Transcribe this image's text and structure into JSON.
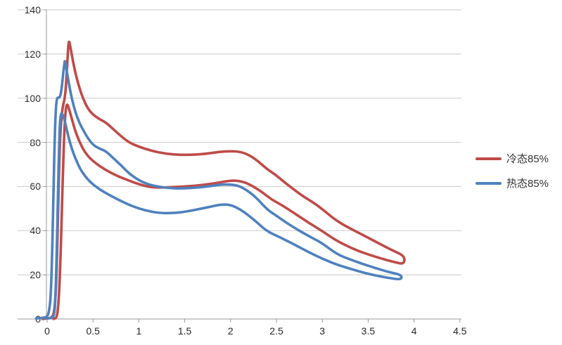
{
  "chart_data": {
    "type": "line",
    "title": "",
    "xlabel": "",
    "ylabel": "",
    "grid": true,
    "legend_position": "right",
    "x_axis": {
      "min": 0,
      "max": 4.5,
      "tick_step": 0.5,
      "tick_labels": [
        "0",
        "0.5",
        "1",
        "1.5",
        "2",
        "2.5",
        "3",
        "3.5",
        "4",
        "4.5"
      ],
      "tick_values": [
        0,
        0.5,
        1,
        1.5,
        2,
        2.5,
        3,
        3.5,
        4,
        4.5
      ]
    },
    "y_axis": {
      "min": 0,
      "max": 140,
      "tick_step": 20,
      "tick_labels": [
        "0",
        "20",
        "40",
        "60",
        "80",
        "100",
        "120",
        "140"
      ],
      "tick_values": [
        0,
        20,
        40,
        60,
        80,
        100,
        120,
        140
      ]
    },
    "series": [
      {
        "name": "冷态85%",
        "color": "#BE4B48",
        "shape": "closed-hysteresis-loop",
        "points": [
          [
            -0.05,
            0
          ],
          [
            0.02,
            0.3
          ],
          [
            0.06,
            1
          ],
          [
            0.08,
            4
          ],
          [
            0.1,
            15
          ],
          [
            0.115,
            40
          ],
          [
            0.13,
            68
          ],
          [
            0.145,
            85
          ],
          [
            0.16,
            93
          ],
          [
            0.175,
            97
          ],
          [
            0.19,
            99.5
          ],
          [
            0.205,
            105
          ],
          [
            0.22,
            116
          ],
          [
            0.235,
            127
          ],
          [
            0.255,
            123
          ],
          [
            0.28,
            117
          ],
          [
            0.31,
            111
          ],
          [
            0.35,
            105
          ],
          [
            0.39,
            100
          ],
          [
            0.44,
            95.5
          ],
          [
            0.5,
            92.5
          ],
          [
            0.57,
            90.5
          ],
          [
            0.64,
            89
          ],
          [
            0.72,
            86
          ],
          [
            0.8,
            83
          ],
          [
            0.89,
            80
          ],
          [
            1.0,
            78
          ],
          [
            1.15,
            76
          ],
          [
            1.3,
            74.8
          ],
          [
            1.45,
            74.3
          ],
          [
            1.6,
            74.4
          ],
          [
            1.75,
            74.9
          ],
          [
            1.88,
            75.7
          ],
          [
            2.0,
            76
          ],
          [
            2.1,
            75.8
          ],
          [
            2.2,
            74.3
          ],
          [
            2.3,
            71.5
          ],
          [
            2.4,
            67.8
          ],
          [
            2.5,
            65
          ],
          [
            2.6,
            61.5
          ],
          [
            2.7,
            58.3
          ],
          [
            2.8,
            55.3
          ],
          [
            2.9,
            52.8
          ],
          [
            3.0,
            49.8
          ],
          [
            3.16,
            44.2
          ],
          [
            3.36,
            39.8
          ],
          [
            3.5,
            36.8
          ],
          [
            3.65,
            33.5
          ],
          [
            3.78,
            30.8
          ],
          [
            3.88,
            28.8
          ],
          [
            3.9,
            26.8
          ],
          [
            3.88,
            24.9
          ],
          [
            3.8,
            25.6
          ],
          [
            3.65,
            27.3
          ],
          [
            3.5,
            29.2
          ],
          [
            3.35,
            31.5
          ],
          [
            3.16,
            35.3
          ],
          [
            3.0,
            39.8
          ],
          [
            2.85,
            43.6
          ],
          [
            2.7,
            47.8
          ],
          [
            2.55,
            51.8
          ],
          [
            2.45,
            54
          ],
          [
            2.35,
            57.3
          ],
          [
            2.25,
            60
          ],
          [
            2.15,
            62
          ],
          [
            2.05,
            62.8
          ],
          [
            1.95,
            62.4
          ],
          [
            1.85,
            61.6
          ],
          [
            1.7,
            60.7
          ],
          [
            1.55,
            60.1
          ],
          [
            1.4,
            59.8
          ],
          [
            1.25,
            59.5
          ],
          [
            1.12,
            59.7
          ],
          [
            1.0,
            61
          ],
          [
            0.89,
            62.7
          ],
          [
            0.78,
            64.5
          ],
          [
            0.68,
            66.5
          ],
          [
            0.58,
            69
          ],
          [
            0.5,
            71.5
          ],
          [
            0.44,
            74
          ],
          [
            0.39,
            77
          ],
          [
            0.34,
            81.5
          ],
          [
            0.3,
            86
          ],
          [
            0.27,
            90.5
          ],
          [
            0.24,
            95
          ],
          [
            0.22,
            97.5
          ],
          [
            0.205,
            96
          ],
          [
            0.19,
            88
          ],
          [
            0.175,
            70
          ],
          [
            0.16,
            48
          ],
          [
            0.145,
            26
          ],
          [
            0.13,
            11
          ],
          [
            0.115,
            3
          ],
          [
            0.1,
            0.5
          ],
          [
            0.07,
            0
          ]
        ]
      },
      {
        "name": "热态85%",
        "color": "#4F81BD",
        "shape": "closed-hysteresis-loop",
        "points": [
          [
            -0.12,
            0.3
          ],
          [
            -0.04,
            0.5
          ],
          [
            0.0,
            1
          ],
          [
            0.02,
            3
          ],
          [
            0.04,
            10
          ],
          [
            0.055,
            30
          ],
          [
            0.07,
            60
          ],
          [
            0.085,
            85
          ],
          [
            0.095,
            95
          ],
          [
            0.105,
            99.5
          ],
          [
            0.115,
            100.3
          ],
          [
            0.13,
            100.2
          ],
          [
            0.145,
            101
          ],
          [
            0.16,
            105
          ],
          [
            0.175,
            111
          ],
          [
            0.19,
            116.5
          ],
          [
            0.195,
            117
          ],
          [
            0.215,
            112
          ],
          [
            0.24,
            106
          ],
          [
            0.27,
            99.5
          ],
          [
            0.31,
            93.5
          ],
          [
            0.35,
            89
          ],
          [
            0.4,
            85
          ],
          [
            0.45,
            81.5
          ],
          [
            0.51,
            78.5
          ],
          [
            0.58,
            77
          ],
          [
            0.64,
            76
          ],
          [
            0.73,
            72.5
          ],
          [
            0.81,
            69.5
          ],
          [
            0.89,
            66
          ],
          [
            1.0,
            62.8
          ],
          [
            1.1,
            61
          ],
          [
            1.2,
            60
          ],
          [
            1.32,
            59.3
          ],
          [
            1.45,
            59.1
          ],
          [
            1.6,
            59.4
          ],
          [
            1.75,
            60
          ],
          [
            1.88,
            60.8
          ],
          [
            1.97,
            61
          ],
          [
            2.08,
            60.5
          ],
          [
            2.18,
            58.3
          ],
          [
            2.28,
            55
          ],
          [
            2.4,
            49.5
          ],
          [
            2.5,
            46.8
          ],
          [
            2.6,
            43.8
          ],
          [
            2.7,
            41.2
          ],
          [
            2.8,
            38.8
          ],
          [
            2.9,
            36.5
          ],
          [
            3.0,
            34.3
          ],
          [
            3.16,
            29.3
          ],
          [
            3.3,
            27
          ],
          [
            3.45,
            24.8
          ],
          [
            3.6,
            22.8
          ],
          [
            3.72,
            21.3
          ],
          [
            3.84,
            20.2
          ],
          [
            3.87,
            19
          ],
          [
            3.85,
            17.9
          ],
          [
            3.75,
            18.4
          ],
          [
            3.6,
            19.5
          ],
          [
            3.45,
            21
          ],
          [
            3.3,
            22.8
          ],
          [
            3.16,
            24.6
          ],
          [
            3.0,
            27.3
          ],
          [
            2.85,
            30.3
          ],
          [
            2.7,
            33.6
          ],
          [
            2.55,
            36.8
          ],
          [
            2.4,
            39.6
          ],
          [
            2.3,
            43.3
          ],
          [
            2.2,
            46.8
          ],
          [
            2.1,
            49.8
          ],
          [
            2.0,
            51.7
          ],
          [
            1.9,
            51.9
          ],
          [
            1.8,
            51
          ],
          [
            1.68,
            50
          ],
          [
            1.55,
            48.9
          ],
          [
            1.42,
            48.1
          ],
          [
            1.3,
            47.9
          ],
          [
            1.18,
            48.2
          ],
          [
            1.07,
            49.2
          ],
          [
            0.96,
            50.6
          ],
          [
            0.85,
            52.5
          ],
          [
            0.74,
            54.8
          ],
          [
            0.64,
            57
          ],
          [
            0.55,
            59.3
          ],
          [
            0.47,
            62
          ],
          [
            0.41,
            64.8
          ],
          [
            0.36,
            68
          ],
          [
            0.31,
            72.5
          ],
          [
            0.27,
            77
          ],
          [
            0.235,
            82
          ],
          [
            0.21,
            86.5
          ],
          [
            0.19,
            90
          ],
          [
            0.17,
            92.5
          ],
          [
            0.155,
            93.5
          ],
          [
            0.14,
            90
          ],
          [
            0.13,
            78
          ],
          [
            0.12,
            60
          ],
          [
            0.11,
            40
          ],
          [
            0.1,
            22
          ],
          [
            0.09,
            9
          ],
          [
            0.08,
            2.5
          ],
          [
            0.06,
            0.5
          ],
          [
            0.0,
            0.2
          ]
        ]
      }
    ],
    "colors": {
      "gridline": "#C9C9C9",
      "axis": "#9A9A9A",
      "tick_text": "#262626"
    }
  }
}
